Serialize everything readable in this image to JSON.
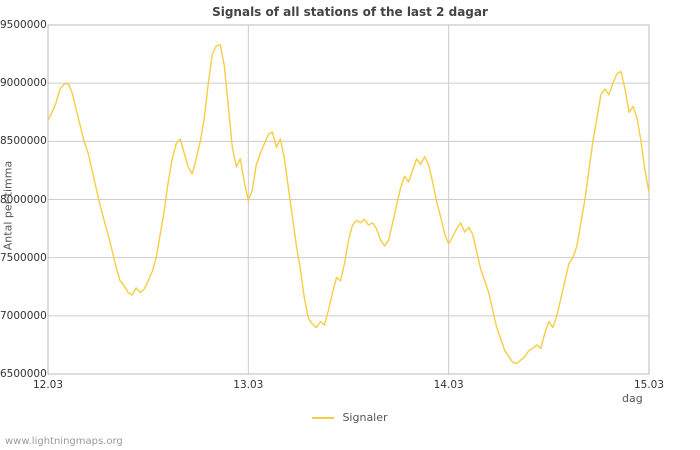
{
  "page": {
    "title": "Signals of all stations of the last 2 dagar",
    "footer": "www.lightningmaps.org"
  },
  "axes": {
    "ylabel": "Antal per timma",
    "xlabel": "dag"
  },
  "legend": {
    "items": [
      {
        "label": "Signaler",
        "color": "#F6CE45"
      }
    ]
  },
  "chart_data": {
    "type": "line",
    "title": "Signals of all stations of the last 2 dagar",
    "xlabel": "dag",
    "ylabel": "Antal per timma",
    "xlim": [
      0,
      3
    ],
    "ylim": [
      6500000,
      9500000
    ],
    "grid": true,
    "legend_position": "bottom",
    "x_ticks": [
      {
        "value": 0,
        "label": "12.03"
      },
      {
        "value": 1,
        "label": "13.03"
      },
      {
        "value": 2,
        "label": "14.03"
      },
      {
        "value": 3,
        "label": "15.03"
      }
    ],
    "y_ticks": [
      {
        "value": 6500000,
        "label": "6500000"
      },
      {
        "value": 7000000,
        "label": "7000000"
      },
      {
        "value": 7500000,
        "label": "7500000"
      },
      {
        "value": 8000000,
        "label": "8000000"
      },
      {
        "value": 8500000,
        "label": "8500000"
      },
      {
        "value": 9000000,
        "label": "9000000"
      },
      {
        "value": 9500000,
        "label": "9500000"
      }
    ],
    "series": [
      {
        "name": "Signaler",
        "color": "#F6CE45",
        "x": [
          0,
          0.02,
          0.04,
          0.06,
          0.08,
          0.1,
          0.12,
          0.14,
          0.16,
          0.18,
          0.2,
          0.22,
          0.24,
          0.26,
          0.28,
          0.3,
          0.32,
          0.34,
          0.36,
          0.38,
          0.4,
          0.42,
          0.44,
          0.46,
          0.48,
          0.5,
          0.52,
          0.54,
          0.56,
          0.58,
          0.6,
          0.62,
          0.64,
          0.66,
          0.68,
          0.7,
          0.72,
          0.74,
          0.76,
          0.78,
          0.8,
          0.82,
          0.84,
          0.86,
          0.88,
          0.9,
          0.92,
          0.94,
          0.96,
          0.98,
          1,
          1.02,
          1.04,
          1.06,
          1.08,
          1.1,
          1.12,
          1.14,
          1.16,
          1.18,
          1.2,
          1.22,
          1.24,
          1.26,
          1.28,
          1.3,
          1.32,
          1.34,
          1.36,
          1.38,
          1.4,
          1.42,
          1.44,
          1.46,
          1.48,
          1.5,
          1.52,
          1.54,
          1.56,
          1.58,
          1.6,
          1.62,
          1.64,
          1.66,
          1.68,
          1.7,
          1.72,
          1.74,
          1.76,
          1.78,
          1.8,
          1.82,
          1.84,
          1.86,
          1.88,
          1.9,
          1.92,
          1.94,
          1.96,
          1.98,
          2,
          2.02,
          2.04,
          2.06,
          2.08,
          2.1,
          2.12,
          2.14,
          2.16,
          2.18,
          2.2,
          2.22,
          2.24,
          2.26,
          2.28,
          2.3,
          2.32,
          2.34,
          2.36,
          2.38,
          2.4,
          2.42,
          2.44,
          2.46,
          2.48,
          2.5,
          2.52,
          2.54,
          2.56,
          2.58,
          2.6,
          2.62,
          2.64,
          2.66,
          2.68,
          2.7,
          2.72,
          2.74,
          2.76,
          2.78,
          2.8,
          2.82,
          2.84,
          2.86,
          2.88,
          2.9,
          2.92,
          2.94,
          2.96,
          2.98,
          3
        ],
        "y": [
          8680000,
          8750000,
          8830000,
          8950000,
          8990000,
          9000000,
          8920000,
          8780000,
          8640000,
          8500000,
          8400000,
          8250000,
          8100000,
          7950000,
          7820000,
          7700000,
          7560000,
          7420000,
          7300000,
          7260000,
          7200000,
          7180000,
          7240000,
          7200000,
          7230000,
          7300000,
          7380000,
          7500000,
          7700000,
          7900000,
          8150000,
          8350000,
          8480000,
          8520000,
          8400000,
          8280000,
          8220000,
          8350000,
          8500000,
          8700000,
          9000000,
          9250000,
          9320000,
          9330000,
          9150000,
          8800000,
          8450000,
          8280000,
          8350000,
          8150000,
          7990000,
          8080000,
          8300000,
          8400000,
          8480000,
          8560000,
          8580000,
          8450000,
          8520000,
          8350000,
          8100000,
          7850000,
          7600000,
          7400000,
          7150000,
          6980000,
          6930000,
          6900000,
          6950000,
          6920000,
          7050000,
          7200000,
          7330000,
          7300000,
          7450000,
          7650000,
          7780000,
          7820000,
          7800000,
          7830000,
          7780000,
          7800000,
          7750000,
          7650000,
          7600000,
          7650000,
          7800000,
          7950000,
          8100000,
          8200000,
          8150000,
          8250000,
          8350000,
          8300000,
          8370000,
          8300000,
          8150000,
          7980000,
          7850000,
          7700000,
          7620000,
          7680000,
          7750000,
          7800000,
          7720000,
          7760000,
          7700000,
          7550000,
          7400000,
          7300000,
          7200000,
          7050000,
          6900000,
          6800000,
          6700000,
          6650000,
          6600000,
          6590000,
          6620000,
          6650000,
          6700000,
          6720000,
          6750000,
          6720000,
          6850000,
          6950000,
          6900000,
          7000000,
          7150000,
          7300000,
          7450000,
          7500000,
          7600000,
          7800000,
          8000000,
          8250000,
          8500000,
          8700000,
          8900000,
          8950000,
          8900000,
          9000000,
          9080000,
          9100000,
          8950000,
          8750000,
          8800000,
          8700000,
          8500000,
          8250000,
          8060000
        ]
      }
    ]
  }
}
